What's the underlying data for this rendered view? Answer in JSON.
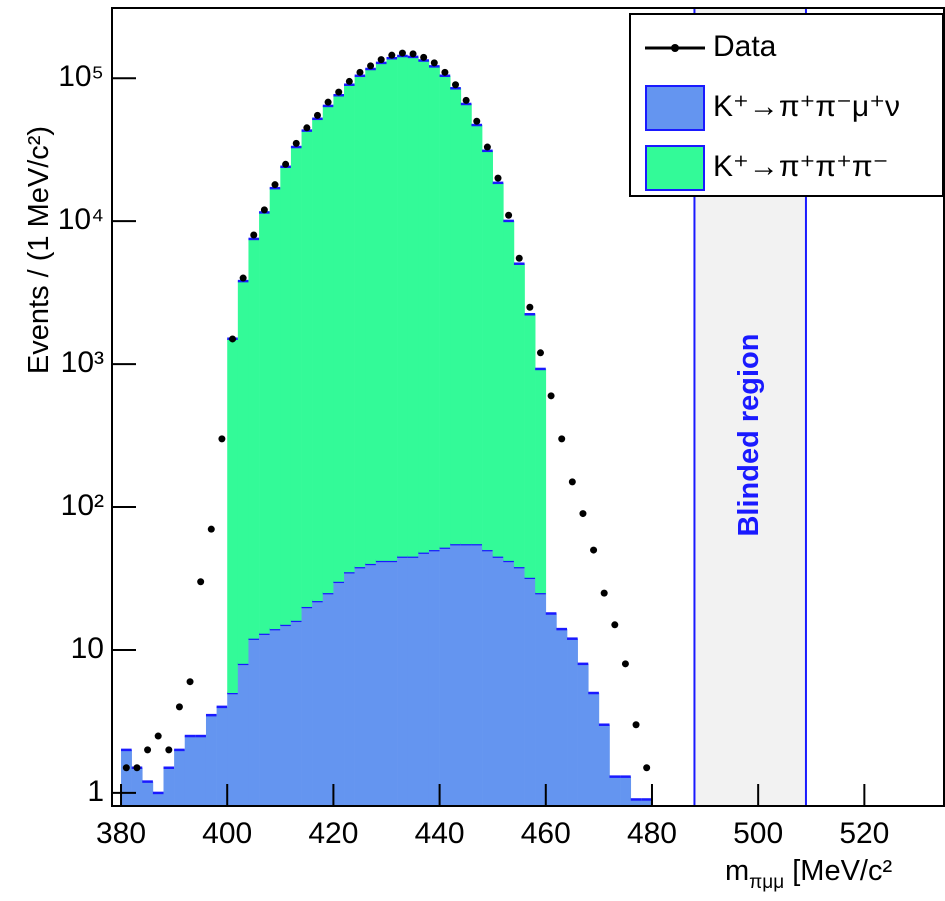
{
  "chart_data": {
    "type": "histogram",
    "y_label": "Events / (1 MeV/c²)",
    "x_label": [
      "m",
      "πμμ",
      " [MeV/c²"
    ],
    "log_y": true,
    "xlim": [
      378.3,
      535
    ],
    "ylim": [
      0.81,
      310000
    ],
    "xticks": [
      380,
      400,
      420,
      440,
      460,
      480,
      500,
      520
    ],
    "yticks": [
      1,
      10,
      {
        "value": 100,
        "label": "10²"
      },
      {
        "value": 1000,
        "label": "10³"
      },
      {
        "value": 10000,
        "label": "10⁴"
      },
      {
        "value": 100000,
        "label": "10⁵"
      }
    ],
    "bins": [
      380,
      382,
      384,
      386,
      388,
      390,
      392,
      394,
      396,
      398,
      400,
      402,
      404,
      406,
      408,
      410,
      412,
      414,
      416,
      418,
      420,
      422,
      424,
      426,
      428,
      430,
      432,
      434,
      436,
      438,
      440,
      442,
      444,
      446,
      448,
      450,
      452,
      454,
      456,
      458,
      460,
      462,
      464,
      466,
      468,
      470,
      472,
      474,
      476,
      478,
      480
    ],
    "series": [
      {
        "name": "K⁺→π⁺π⁻μ⁺ν",
        "style": "stacked",
        "color": "#6495f0",
        "edge": "#1a1aff",
        "values": [
          2,
          1.5,
          1.2,
          1,
          1.5,
          2,
          2.5,
          2.5,
          3.5,
          4,
          5,
          8,
          12,
          13,
          14,
          15,
          16,
          20,
          22,
          25,
          30,
          35,
          38,
          40,
          42,
          42,
          45,
          45,
          48,
          50,
          52,
          55,
          55,
          55,
          50,
          45,
          42,
          38,
          32,
          25,
          18,
          14,
          12,
          8,
          5,
          3,
          1.3,
          1.3,
          0.9,
          0.9
        ]
      },
      {
        "name": "K⁺→π⁺π⁺π⁻",
        "style": "stacked",
        "color": "#33fa98",
        "edge": "#1a1aff",
        "values": [
          0,
          0,
          0,
          0,
          0,
          0,
          0,
          0,
          0,
          0,
          1500,
          3800,
          7500,
          11500,
          17000,
          24000,
          33000,
          43000,
          52000,
          64000,
          76000,
          90000,
          104000,
          116000,
          128000,
          138000,
          143000,
          141000,
          133000,
          121000,
          104000,
          85000,
          66000,
          47000,
          31000,
          18500,
          10000,
          5000,
          2200,
          900,
          0,
          0,
          0,
          0,
          0,
          0,
          0,
          0,
          0,
          0
        ]
      },
      {
        "name": "Data",
        "style": "points",
        "color": "#000000",
        "values": [
          1.5,
          1.5,
          2,
          2.5,
          2,
          4,
          6,
          30,
          70,
          300,
          1500,
          4000,
          8000,
          12000,
          18000,
          25000,
          35000,
          45000,
          55000,
          68000,
          80000,
          95000,
          110000,
          122000,
          135000,
          145000,
          150000,
          148000,
          140000,
          128000,
          110000,
          90000,
          70000,
          50000,
          33000,
          20000,
          11000,
          5500,
          2500,
          1200,
          600,
          300,
          150,
          90,
          50,
          25,
          15,
          8,
          3,
          1.5
        ]
      }
    ],
    "shaded_region": {
      "range": [
        488,
        509
      ],
      "color": "#f2f2f2",
      "edge": "#1a1aff",
      "label": "Blinded region"
    },
    "legend": "top-right"
  }
}
